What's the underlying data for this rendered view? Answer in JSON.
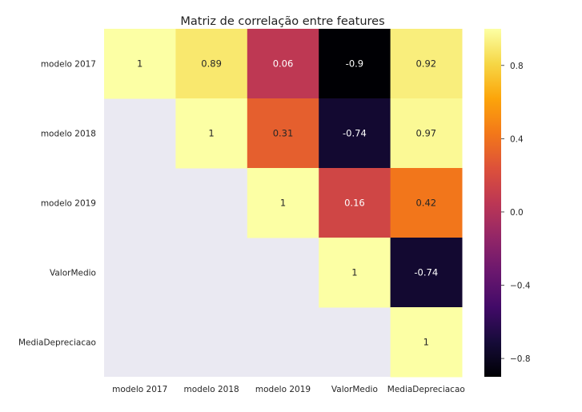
{
  "chart_data": {
    "type": "heatmap",
    "title": "Matriz de correlação entre features",
    "xlabel": "",
    "ylabel": "",
    "x_labels": [
      "modelo 2017",
      "modelo 2018",
      "modelo 2019",
      "ValorMedio",
      "MediaDepreciacao"
    ],
    "y_labels": [
      "modelo 2017",
      "modelo 2018",
      "modelo 2019",
      "ValorMedio",
      "MediaDepreciacao"
    ],
    "cells": [
      {
        "row": 0,
        "col": 0,
        "value": 1,
        "label": "1"
      },
      {
        "row": 0,
        "col": 1,
        "value": 0.89,
        "label": "0.89"
      },
      {
        "row": 0,
        "col": 2,
        "value": 0.06,
        "label": "0.06"
      },
      {
        "row": 0,
        "col": 3,
        "value": -0.9,
        "label": "-0.9"
      },
      {
        "row": 0,
        "col": 4,
        "value": 0.92,
        "label": "0.92"
      },
      {
        "row": 1,
        "col": 1,
        "value": 1,
        "label": "1"
      },
      {
        "row": 1,
        "col": 2,
        "value": 0.31,
        "label": "0.31"
      },
      {
        "row": 1,
        "col": 3,
        "value": -0.74,
        "label": "-0.74"
      },
      {
        "row": 1,
        "col": 4,
        "value": 0.97,
        "label": "0.97"
      },
      {
        "row": 2,
        "col": 2,
        "value": 1,
        "label": "1"
      },
      {
        "row": 2,
        "col": 3,
        "value": 0.16,
        "label": "0.16"
      },
      {
        "row": 2,
        "col": 4,
        "value": 0.42,
        "label": "0.42"
      },
      {
        "row": 3,
        "col": 3,
        "value": 1,
        "label": "1"
      },
      {
        "row": 3,
        "col": 4,
        "value": -0.74,
        "label": "-0.74"
      },
      {
        "row": 4,
        "col": 4,
        "value": 1,
        "label": "1"
      }
    ],
    "masked": "lower-triangle",
    "mask_color": "#eae9f2",
    "colormap": "inferno",
    "vmin": -0.9,
    "vmax": 1,
    "colorbar": {
      "ticks": [
        0.8,
        0.4,
        0.0,
        -0.4,
        -0.8
      ],
      "tick_labels": [
        "0.8",
        "0.4",
        "0.0",
        "−0.4",
        "−0.8"
      ]
    },
    "grid": false,
    "legend": "colorbar-right"
  }
}
